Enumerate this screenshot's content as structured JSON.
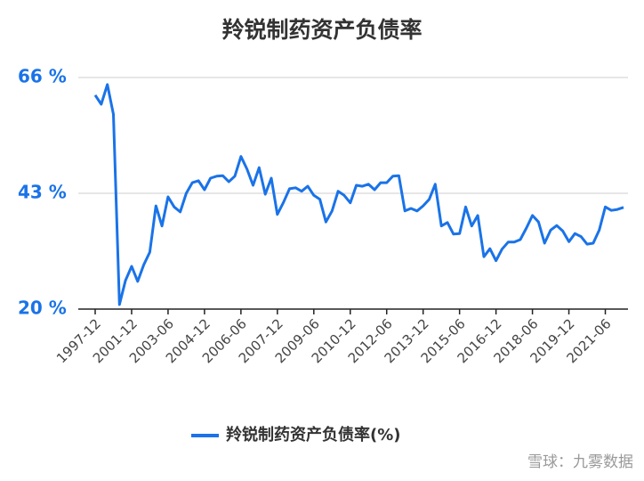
{
  "chart_data": {
    "type": "line",
    "title": "羚锐制药资产负债率",
    "categories": [
      "1997-12",
      null,
      null,
      null,
      null,
      null,
      "2001-12",
      null,
      null,
      null,
      null,
      null,
      "2003-06",
      null,
      null,
      null,
      null,
      null,
      "2004-12",
      null,
      null,
      null,
      null,
      null,
      "2006-06",
      null,
      null,
      null,
      null,
      null,
      "2007-12",
      null,
      null,
      null,
      null,
      null,
      "2009-06",
      null,
      null,
      null,
      null,
      null,
      "2010-12",
      null,
      null,
      null,
      null,
      null,
      "2012-06",
      null,
      null,
      null,
      null,
      null,
      "2013-12",
      null,
      null,
      null,
      null,
      null,
      "2015-06",
      null,
      null,
      null,
      null,
      null,
      "2016-12",
      null,
      null,
      null,
      null,
      null,
      "2018-06",
      null,
      null,
      null,
      null,
      null,
      "2019-12",
      null,
      null,
      null,
      null,
      null,
      "2021-06",
      null,
      null,
      null
    ],
    "series": [
      {
        "name": "羚锐制药资产负债率(%)",
        "color": "#1a73e8",
        "values": [
          62.5,
          60.7,
          64.6,
          58.7,
          20.9,
          25.7,
          28.5,
          25.5,
          28.8,
          31.3,
          40.5,
          36.5,
          42.3,
          40.3,
          39.3,
          43,
          45.1,
          45.5,
          43.7,
          46,
          46.4,
          46.5,
          45.3,
          46.4,
          50.3,
          47.8,
          44.6,
          48.1,
          42.8,
          46,
          38.8,
          41.2,
          43.9,
          44.1,
          43.4,
          44.4,
          42.6,
          41.8,
          37.3,
          39.5,
          43.4,
          42.6,
          41.1,
          44.6,
          44.4,
          44.8,
          43.7,
          45.1,
          45.1,
          46.4,
          46.5,
          39.5,
          40,
          39.5,
          40.5,
          41.8,
          44.8,
          36.5,
          37.2,
          34.9,
          35,
          40.3,
          36.5,
          38.6,
          30.4,
          32,
          29.6,
          31.9,
          33.3,
          33.3,
          33.8,
          36.1,
          38.6,
          37.3,
          33.1,
          35.7,
          36.6,
          35.5,
          33.4,
          35,
          34.4,
          32.9,
          33.1,
          35.7,
          40.3,
          39.6,
          39.8,
          40.2
        ]
      }
    ],
    "ylim": [
      20,
      66
    ],
    "yticks": [
      {
        "value": 20,
        "label": "20 %"
      },
      {
        "value": 43,
        "label": "43 %"
      },
      {
        "value": 66,
        "label": "66 %"
      }
    ],
    "grid": true,
    "legend": "bottom",
    "watermark": "雪球：九雾数据"
  }
}
